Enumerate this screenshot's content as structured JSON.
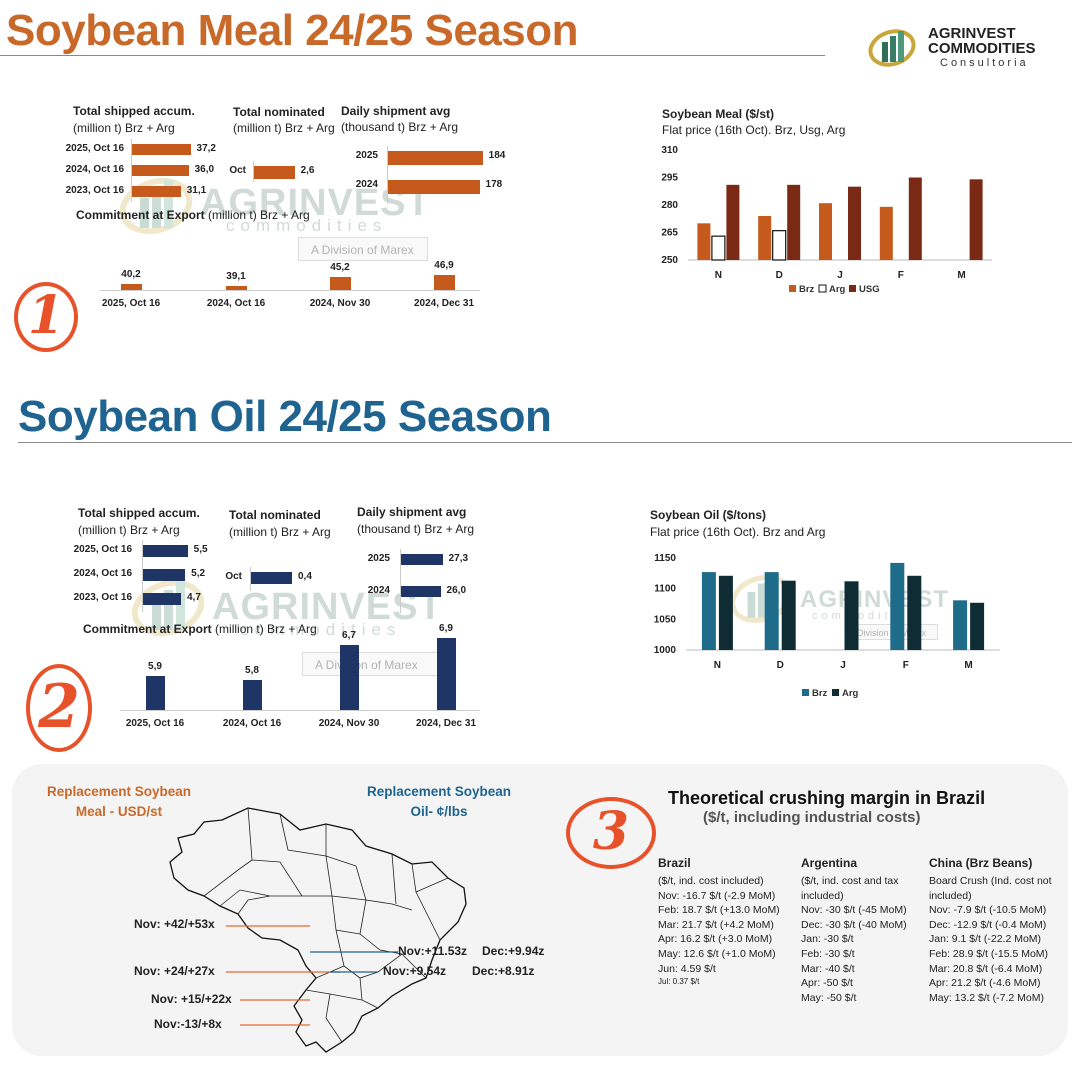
{
  "brand": {
    "name_line1": "AGRINVEST",
    "name_line2": "COMMODITIES",
    "name_line3": "Consultoria",
    "watermark_main": "AGRINVEST",
    "watermark_sub": "commodities",
    "watermark_division": "A Division of Marex",
    "watermark_division_short": "Division of Marex"
  },
  "colors": {
    "meal_title": "#c8692a",
    "meal_bar": "#c55a1c",
    "oil_title": "#1f6390",
    "oil_bar": "#1f3566",
    "usg": "#7a2a14",
    "brz_oil": "#1e6b8a",
    "arg_oil": "#0f2b33",
    "accent_circle": "#e8522a"
  },
  "meal": {
    "title": "Soybean Meal 24/25 Season",
    "circle": "1",
    "shipped": {
      "title": "Total shipped accum.",
      "subtitle": "(million t) Brz + Arg",
      "rows": [
        {
          "label": "2025, Oct 16",
          "value": 37.2,
          "text": "37,2"
        },
        {
          "label": "2024, Oct 16",
          "value": 36.0,
          "text": "36,0"
        },
        {
          "label": "2023, Oct 16",
          "value": 31.1,
          "text": "31,1"
        }
      ]
    },
    "nominated": {
      "title": "Total nominated",
      "subtitle": "(million t) Brz + Arg",
      "rows": [
        {
          "label": "Oct",
          "value": 2.6,
          "text": "2,6"
        }
      ]
    },
    "daily": {
      "title": "Daily shipment avg",
      "subtitle": "(thousand t) Brz + Arg",
      "rows": [
        {
          "label": "2025",
          "value": 184,
          "text": "184"
        },
        {
          "label": "2024",
          "value": 178,
          "text": "178"
        }
      ]
    },
    "commitment": {
      "title_bold": "Commitment at Export",
      "title_rest": "(million t) Brz + Arg",
      "bars": [
        {
          "label": "2025, Oct 16",
          "value": 40.2,
          "text": "40,2"
        },
        {
          "label": "2024, Oct 16",
          "value": 39.1,
          "text": "39,1"
        },
        {
          "label": "2024, Nov 30",
          "value": 45.2,
          "text": "45,2"
        },
        {
          "label": "2024, Dec 31",
          "value": 46.9,
          "text": "46,9"
        }
      ]
    }
  },
  "oil": {
    "title": "Soybean Oil 24/25 Season",
    "circle": "2",
    "shipped": {
      "title": "Total shipped accum.",
      "subtitle": "(million t) Brz + Arg",
      "rows": [
        {
          "label": "2025, Oct 16",
          "value": 5.5,
          "text": "5,5"
        },
        {
          "label": "2024, Oct 16",
          "value": 5.2,
          "text": "5,2"
        },
        {
          "label": "2023, Oct 16",
          "value": 4.7,
          "text": "4,7"
        }
      ]
    },
    "nominated": {
      "title": "Total nominated",
      "subtitle": "(million t) Brz + Arg",
      "rows": [
        {
          "label": "Oct",
          "value": 0.4,
          "text": "0,4"
        }
      ]
    },
    "daily": {
      "title": "Daily shipment avg",
      "subtitle": "(thousand t) Brz + Arg",
      "rows": [
        {
          "label": "2025",
          "value": 27.3,
          "text": "27,3"
        },
        {
          "label": "2024",
          "value": 26.0,
          "text": "26,0"
        }
      ]
    },
    "commitment": {
      "title_bold": "Commitment at Export",
      "title_rest": "(million t) Brz + Arg",
      "bars": [
        {
          "label": "2025, Oct 16",
          "value": 5.9,
          "text": "5,9"
        },
        {
          "label": "2024, Oct 16",
          "value": 5.8,
          "text": "5,8"
        },
        {
          "label": "2024, Nov 30",
          "value": 6.7,
          "text": "6,7"
        },
        {
          "label": "2024, Dec 31",
          "value": 6.9,
          "text": "6,9"
        }
      ]
    }
  },
  "chart_data": [
    {
      "type": "bar",
      "title": "Soybean Meal ($/st)",
      "subtitle": "Flat price (16th Oct). Brz, Usg, Arg",
      "categories": [
        "N",
        "D",
        "J",
        "F",
        "M"
      ],
      "ylim": [
        250,
        310
      ],
      "yticks": [
        250,
        265,
        280,
        295,
        310
      ],
      "legend": "bottom",
      "series": [
        {
          "name": "Brz",
          "values": [
            270,
            274,
            281,
            279,
            null
          ]
        },
        {
          "name": "Arg",
          "values": [
            263,
            266,
            null,
            null,
            null
          ]
        },
        {
          "name": "USG",
          "values": [
            291,
            291,
            290,
            295,
            294
          ]
        }
      ]
    },
    {
      "type": "bar",
      "title": "Soybean Oil ($/tons)",
      "subtitle": "Flat price (16th Oct). Brz and Arg",
      "categories": [
        "N",
        "D",
        "J",
        "F",
        "M"
      ],
      "ylim": [
        1000,
        1150
      ],
      "yticks": [
        1000,
        1050,
        1100,
        1150
      ],
      "legend": "bottom",
      "series": [
        {
          "name": "Brz",
          "values": [
            1127,
            1127,
            null,
            1142,
            1081
          ]
        },
        {
          "name": "Arg",
          "values": [
            1121,
            1113,
            1112,
            1121,
            1077
          ]
        }
      ]
    }
  ],
  "replacement": {
    "meal_title_l1": "Replacement  Soybean",
    "meal_title_l2": "Meal - USD/st",
    "oil_title_l1": "Replacement Soybean",
    "oil_title_l2": "Oil- ¢/lbs",
    "labels": [
      "Nov: +42/+53x",
      "Nov: +24/+27x",
      "Nov: +15/+22x",
      "Nov:-13/+8x",
      "Nov:+11.53z",
      "Dec:+9.94z",
      "Nov:+9.54z",
      "Dec:+8.91z"
    ]
  },
  "crushing": {
    "circle": "3",
    "title": "Theoretical crushing margin in Brazil",
    "subtitle": "($/t, including industrial costs)",
    "columns": [
      {
        "head": "Brazil",
        "lines": [
          "($/t, ind. cost included)",
          "Nov: -16.7 $/t (-2.9 MoM)",
          "Feb:  18.7 $/t (+13.0 MoM)",
          "Mar:  21.7 $/t (+4.2 MoM)",
          "Apr:  16.2 $/t (+3.0 MoM)",
          "May:  12.6 $/t (+1.0 MoM)",
          "Jun:  4.59 $/t"
        ],
        "small": "Jul:  0.37 $/t"
      },
      {
        "head": "Argentina",
        "lines": [
          "($/t, ind. cost  and tax",
          "included)",
          "Nov: -30 $/t (-45 MoM)",
          "Dec: -30 $/t (-40 MoM)",
          "Jan: -30 $/t",
          "Feb: -30 $/t",
          "Mar: -40 $/t",
          "Apr: -50 $/t",
          "May: -50 $/t"
        ]
      },
      {
        "head": "China (Brz Beans)",
        "lines": [
          "Board Crush (Ind. cost not",
          "included)",
          "Nov: -7.9 $/t (-10.5 MoM)",
          "Dec: -12.9 $/t (-0.4 MoM)",
          "Jan:   9.1 $/t (-22.2 MoM)",
          "Feb:   28.9 $/t (-15.5 MoM)",
          "Mar:   20.8 $/t (-6.4 MoM)",
          "Apr:   21.2 $/t (-4.6 MoM)",
          "May:  13.2 $/t (-7.2 MoM)"
        ]
      }
    ]
  }
}
